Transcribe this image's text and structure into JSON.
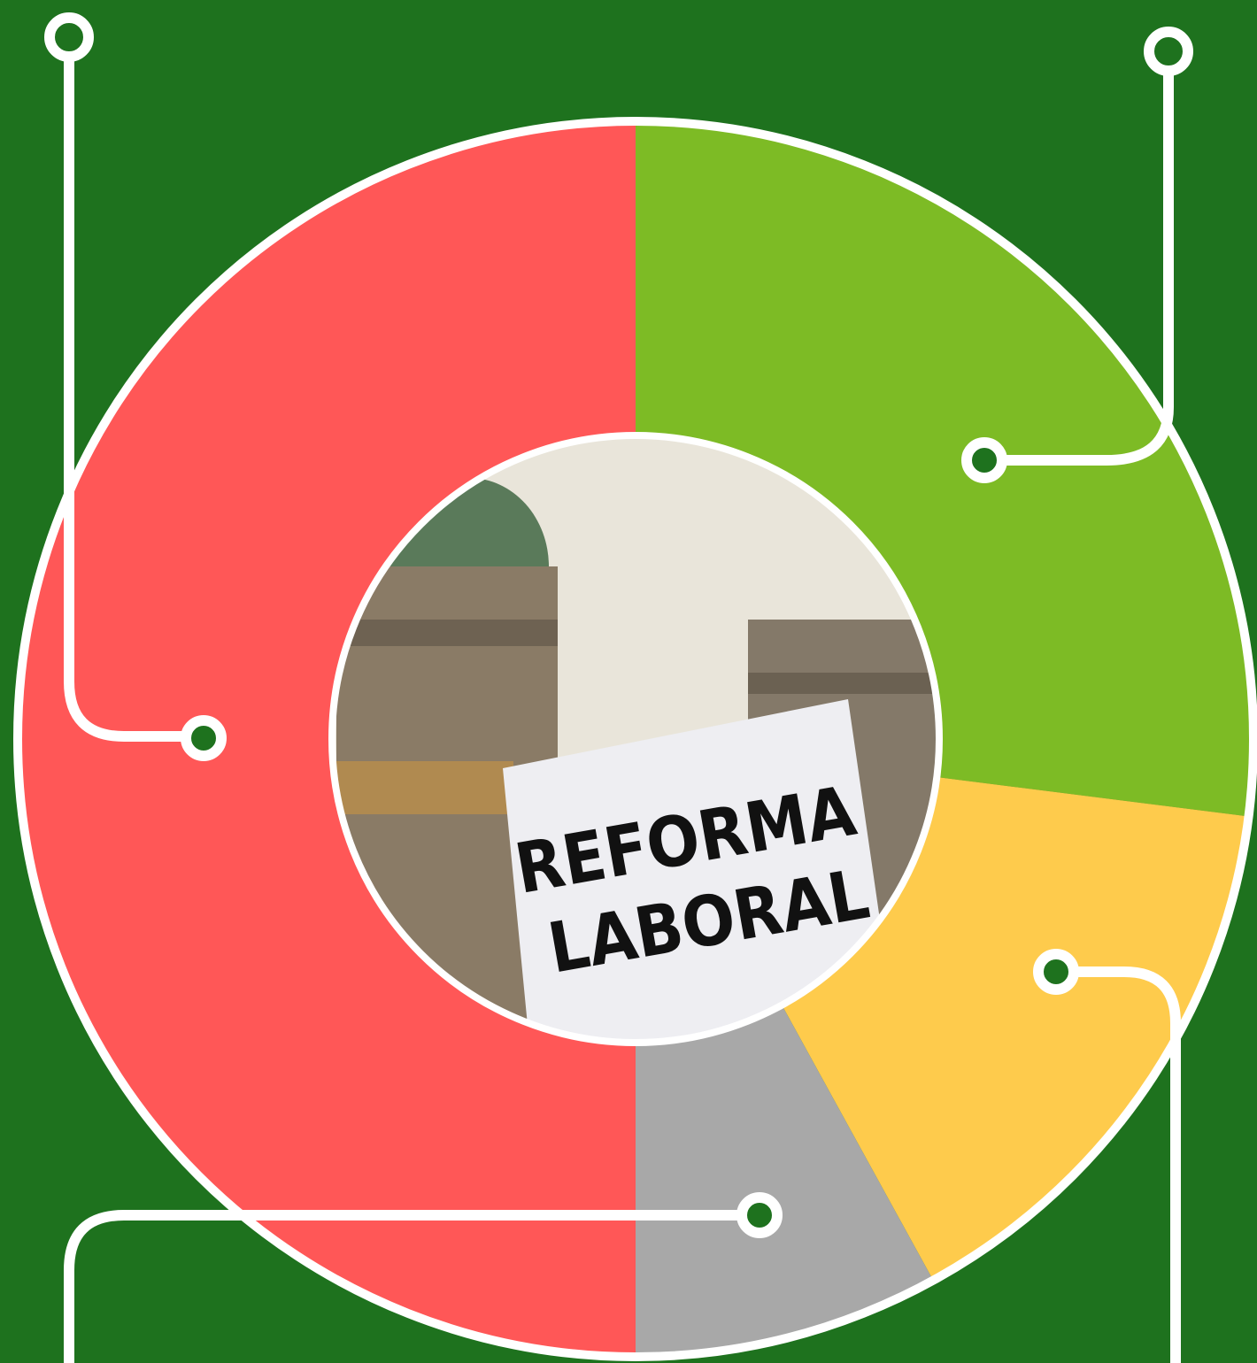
{
  "chart_data": {
    "type": "pie",
    "values": [
      27,
      15,
      8,
      50
    ],
    "colors": [
      "#7dbb25",
      "#fecb4c",
      "#a8a8a8",
      "#ff5757"
    ],
    "start": "top",
    "direction": "clockwise",
    "annotations": [
      "REFORMA",
      "LABORAL"
    ]
  }
}
